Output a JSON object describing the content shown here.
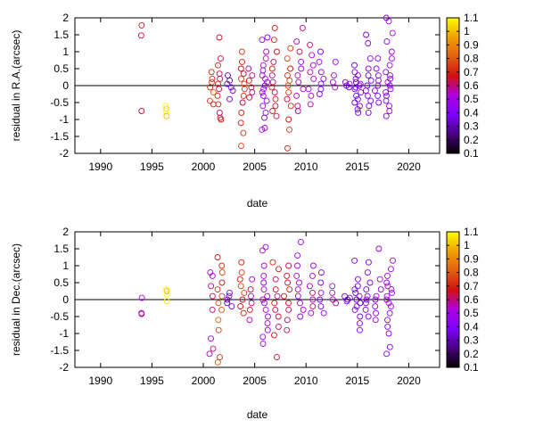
{
  "chart_data": [
    {
      "type": "scatter",
      "xlabel": "date",
      "ylabel": "residual in R.A.(arcsec)",
      "xlim": [
        1987.5,
        2023
      ],
      "ylim": [
        -2,
        2
      ],
      "x_ticks": [
        1990,
        1995,
        2000,
        2005,
        2010,
        2015,
        2020
      ],
      "y_ticks": [
        2,
        1.5,
        1,
        0.5,
        0,
        -0.5,
        -1,
        -1.5,
        -2
      ],
      "zero_line": true,
      "colorbar": {
        "ticks": [
          1.1,
          1,
          0.9,
          0.8,
          0.7,
          0.6,
          0.5,
          0.4,
          0.3,
          0.2,
          0.1
        ],
        "range": [
          0.1,
          1.1
        ],
        "stops": [
          "#000000",
          "#4b0082",
          "#8000ff",
          "#b000e0",
          "#d01010",
          "#e06010",
          "#f0a000",
          "#ffff00"
        ]
      },
      "series": [
        {
          "clusters": [
            {
              "x": 1994.0,
              "spread": 0.05,
              "c": 0.65,
              "y": [
                1.78,
                1.48,
                -0.75
              ]
            },
            {
              "x": 1996.4,
              "spread": 0.08,
              "c": 1.05,
              "y": [
                -0.6,
                -0.68,
                -0.75,
                -0.9
              ]
            },
            {
              "x": 2000.8,
              "spread": 0.2,
              "c": 0.75,
              "y": [
                0.4,
                0.2,
                0.1,
                -0.05,
                -0.2,
                -0.45,
                -0.55
              ]
            },
            {
              "x": 2001.6,
              "spread": 0.25,
              "c": 0.65,
              "y": [
                1.42,
                0.8,
                0.6,
                0.35,
                0.2,
                0.05,
                -0.1,
                -0.3,
                -0.55,
                -0.8,
                -0.95,
                -1.0
              ]
            },
            {
              "x": 2002.6,
              "spread": 0.3,
              "c": 0.35,
              "y": [
                0.3,
                0.15,
                0.05,
                -0.05,
                -0.15,
                -0.4
              ]
            },
            {
              "x": 2003.8,
              "spread": 0.25,
              "c": 0.7,
              "y": [
                1.0,
                0.7,
                0.5,
                0.35,
                0.2,
                0.05,
                -0.1,
                -0.3,
                -0.5,
                -0.8,
                -1.1,
                -1.4,
                -1.78
              ]
            },
            {
              "x": 2004.7,
              "spread": 0.3,
              "c": 0.6,
              "y": [
                0.5,
                0.3,
                0.15,
                -0.05,
                -0.2,
                -0.35
              ]
            },
            {
              "x": 2006.0,
              "spread": 0.3,
              "c": 0.5,
              "y": [
                1.42,
                1.35,
                1.0,
                0.8,
                0.6,
                0.45,
                0.3,
                0.2,
                0.1,
                0.0,
                -0.1,
                -0.2,
                -0.3,
                -0.45,
                -0.6,
                -0.8,
                -0.95,
                -1.25,
                -1.3
              ]
            },
            {
              "x": 2007.0,
              "spread": 0.35,
              "c": 0.65,
              "y": [
                1.7,
                1.35,
                1.0,
                0.7,
                0.5,
                0.3,
                0.1,
                -0.05,
                -0.2,
                -0.4,
                -0.6,
                -0.75,
                -0.9
              ]
            },
            {
              "x": 2008.2,
              "spread": 0.35,
              "c": 0.7,
              "y": [
                1.1,
                0.8,
                0.5,
                0.3,
                0.15,
                0.0,
                -0.2,
                -0.4,
                -0.6,
                -1.0,
                -1.3,
                -1.85
              ]
            },
            {
              "x": 2009.4,
              "spread": 0.35,
              "c": 0.55,
              "y": [
                1.7,
                1.3,
                1.0,
                0.7,
                0.5,
                0.3,
                0.1,
                -0.1,
                -0.3,
                -0.6,
                -0.75
              ]
            },
            {
              "x": 2010.5,
              "spread": 0.3,
              "c": 0.55,
              "y": [
                1.2,
                0.9,
                0.6,
                0.4,
                0.2,
                -0.1,
                -0.3,
                -0.55
              ]
            },
            {
              "x": 2011.5,
              "spread": 0.25,
              "c": 0.45,
              "y": [
                1.0,
                0.7,
                0.4,
                0.2,
                0.05,
                -0.1,
                -0.25
              ]
            },
            {
              "x": 2012.7,
              "spread": 0.25,
              "c": 0.55,
              "y": [
                0.7,
                0.3,
                0.1,
                -0.05
              ]
            },
            {
              "x": 2014.0,
              "spread": 0.3,
              "c": 0.35,
              "y": [
                0.1,
                0.05,
                0.0,
                -0.05
              ]
            },
            {
              "x": 2015.0,
              "spread": 0.35,
              "c": 0.35,
              "y": [
                0.6,
                0.4,
                0.3,
                0.2,
                0.1,
                0.05,
                0.0,
                -0.05,
                -0.1,
                -0.2,
                -0.3,
                -0.4,
                -0.5,
                -0.6,
                -0.7,
                -0.8
              ]
            },
            {
              "x": 2016.1,
              "spread": 0.3,
              "c": 0.4,
              "y": [
                1.5,
                1.25,
                0.8,
                0.5,
                0.3,
                0.15,
                0.0,
                -0.15,
                -0.3,
                -0.45,
                -0.6,
                -0.8
              ]
            },
            {
              "x": 2017.0,
              "spread": 0.3,
              "c": 0.45,
              "y": [
                0.8,
                0.5,
                0.3,
                0.15,
                0.0,
                -0.15,
                -0.3,
                -0.5
              ]
            },
            {
              "x": 2018.1,
              "spread": 0.35,
              "c": 0.45,
              "y": [
                2.0,
                1.9,
                1.55,
                1.3,
                1.0,
                0.8,
                0.6,
                0.4,
                0.3,
                0.2,
                0.1,
                0.0,
                -0.1,
                -0.2,
                -0.3,
                -0.45,
                -0.6,
                -0.75,
                -0.9
              ]
            }
          ]
        }
      ]
    },
    {
      "type": "scatter",
      "xlabel": "date",
      "ylabel": "residual in Dec.(arcsec)",
      "xlim": [
        1987.5,
        2023
      ],
      "ylim": [
        -2,
        2
      ],
      "x_ticks": [
        1990,
        1995,
        2000,
        2005,
        2010,
        2015,
        2020
      ],
      "y_ticks": [
        2,
        1.5,
        1,
        0.5,
        0,
        -0.5,
        -1,
        -1.5,
        -2
      ],
      "zero_line": true,
      "colorbar": {
        "ticks": [
          1.1,
          1,
          0.9,
          0.8,
          0.7,
          0.6,
          0.5,
          0.4,
          0.3,
          0.2,
          0.1
        ],
        "range": [
          0.1,
          1.1
        ],
        "stops": [
          "#000000",
          "#4b0082",
          "#8000ff",
          "#b000e0",
          "#d01010",
          "#e06010",
          "#f0a000",
          "#ffff00"
        ]
      },
      "series": [
        {
          "clusters": [
            {
              "x": 1994.0,
              "spread": 0.05,
              "c": 0.55,
              "y": [
                0.05,
                -0.4,
                -0.42
              ]
            },
            {
              "x": 1996.4,
              "spread": 0.08,
              "c": 1.05,
              "y": [
                0.3,
                0.25,
                0.15,
                -0.05
              ]
            },
            {
              "x": 2000.8,
              "spread": 0.2,
              "c": 0.55,
              "y": [
                0.8,
                0.7,
                0.4,
                0.1,
                -0.3,
                -1.15,
                -1.45,
                -1.6
              ]
            },
            {
              "x": 2001.6,
              "spread": 0.25,
              "c": 0.75,
              "y": [
                1.25,
                1.0,
                0.8,
                0.5,
                0.3,
                0.1,
                -0.1,
                -0.3,
                -0.6,
                -0.9,
                -1.7,
                -1.85
              ]
            },
            {
              "x": 2002.6,
              "spread": 0.3,
              "c": 0.35,
              "y": [
                0.2,
                0.1,
                0.0,
                -0.1,
                -0.2
              ]
            },
            {
              "x": 2003.8,
              "spread": 0.25,
              "c": 0.7,
              "y": [
                1.1,
                0.8,
                0.6,
                0.4,
                0.2,
                0.0,
                -0.2,
                -0.4
              ]
            },
            {
              "x": 2004.7,
              "spread": 0.3,
              "c": 0.6,
              "y": [
                0.6,
                0.3,
                0.1,
                -0.1,
                -0.3,
                -0.6
              ]
            },
            {
              "x": 2006.0,
              "spread": 0.3,
              "c": 0.5,
              "y": [
                1.55,
                1.45,
                1.0,
                0.7,
                0.5,
                0.3,
                0.1,
                0.0,
                -0.1,
                -0.3,
                -0.5,
                -0.7,
                -0.9,
                -1.1,
                -1.3
              ]
            },
            {
              "x": 2007.0,
              "spread": 0.35,
              "c": 0.65,
              "y": [
                1.1,
                0.9,
                0.6,
                0.3,
                0.1,
                -0.1,
                -0.3,
                -0.5,
                -0.8,
                -1.05,
                -1.7
              ]
            },
            {
              "x": 2008.2,
              "spread": 0.35,
              "c": 0.65,
              "y": [
                1.0,
                0.7,
                0.5,
                0.3,
                0.1,
                -0.1,
                -0.3,
                -0.6,
                -0.9
              ]
            },
            {
              "x": 2009.4,
              "spread": 0.35,
              "c": 0.5,
              "y": [
                1.7,
                1.3,
                1.0,
                0.7,
                0.5,
                0.3,
                0.1,
                -0.1,
                -0.3,
                -0.5
              ]
            },
            {
              "x": 2010.5,
              "spread": 0.3,
              "c": 0.55,
              "y": [
                1.0,
                0.7,
                0.4,
                0.2,
                0.0,
                -0.2,
                -0.4
              ]
            },
            {
              "x": 2011.5,
              "spread": 0.25,
              "c": 0.4,
              "y": [
                0.8,
                0.5,
                0.2,
                0.0,
                -0.2,
                -0.4
              ]
            },
            {
              "x": 2012.7,
              "spread": 0.25,
              "c": 0.55,
              "y": [
                0.4,
                0.2,
                0.0,
                -0.1
              ]
            },
            {
              "x": 2014.0,
              "spread": 0.3,
              "c": 0.35,
              "y": [
                0.1,
                0.05,
                0.0,
                -0.05
              ]
            },
            {
              "x": 2015.0,
              "spread": 0.35,
              "c": 0.35,
              "y": [
                1.15,
                0.6,
                0.4,
                0.3,
                0.2,
                0.1,
                0.0,
                -0.1,
                -0.2,
                -0.3,
                -0.5,
                -0.7,
                -0.9
              ]
            },
            {
              "x": 2016.1,
              "spread": 0.3,
              "c": 0.4,
              "y": [
                1.1,
                0.8,
                0.5,
                0.3,
                0.1,
                0.0,
                -0.1,
                -0.3,
                -0.5
              ]
            },
            {
              "x": 2017.0,
              "spread": 0.3,
              "c": 0.45,
              "y": [
                1.5,
                0.6,
                0.3,
                0.1,
                0.0,
                -0.2,
                -0.4,
                -0.6
              ]
            },
            {
              "x": 2018.1,
              "spread": 0.35,
              "c": 0.45,
              "y": [
                1.15,
                0.9,
                0.7,
                0.5,
                0.4,
                0.3,
                0.2,
                0.1,
                0.0,
                -0.1,
                -0.2,
                -0.4,
                -0.6,
                -0.8,
                -1.0,
                -1.4,
                -1.6
              ]
            }
          ]
        }
      ]
    }
  ]
}
